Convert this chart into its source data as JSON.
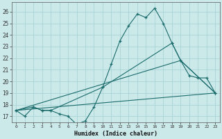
{
  "xlabel": "Humidex (Indice chaleur)",
  "bg_color": "#cce9ea",
  "grid_color": "#aad4d6",
  "line_color": "#1a6b6b",
  "xlim": [
    -0.5,
    23.5
  ],
  "ylim": [
    16.5,
    26.8
  ],
  "yticks": [
    17,
    18,
    19,
    20,
    21,
    22,
    23,
    24,
    25,
    26
  ],
  "xticks": [
    0,
    1,
    2,
    3,
    4,
    5,
    6,
    7,
    8,
    9,
    10,
    11,
    12,
    13,
    14,
    15,
    16,
    17,
    18,
    19,
    20,
    21,
    22,
    23
  ],
  "line1_x": [
    0,
    1,
    2,
    3,
    4,
    5,
    6,
    7,
    8,
    9,
    10,
    11,
    12,
    13,
    14,
    15,
    16,
    17,
    18,
    19,
    20,
    21,
    22,
    23
  ],
  "line1_y": [
    17.5,
    17.0,
    17.8,
    17.5,
    17.5,
    17.2,
    17.0,
    16.3,
    16.6,
    17.8,
    19.5,
    21.5,
    23.5,
    24.8,
    25.8,
    25.5,
    26.3,
    25.0,
    23.3,
    21.8,
    20.5,
    20.3,
    20.3,
    19.0
  ],
  "line2_x": [
    0,
    2,
    3,
    4,
    10,
    18,
    19,
    23
  ],
  "line2_y": [
    17.5,
    17.8,
    17.5,
    17.5,
    19.5,
    23.3,
    21.8,
    19.0
  ],
  "line3_x": [
    0,
    23
  ],
  "line3_y": [
    17.5,
    19.0
  ],
  "line4_x": [
    0,
    19,
    23
  ],
  "line4_y": [
    17.5,
    21.8,
    19.0
  ]
}
